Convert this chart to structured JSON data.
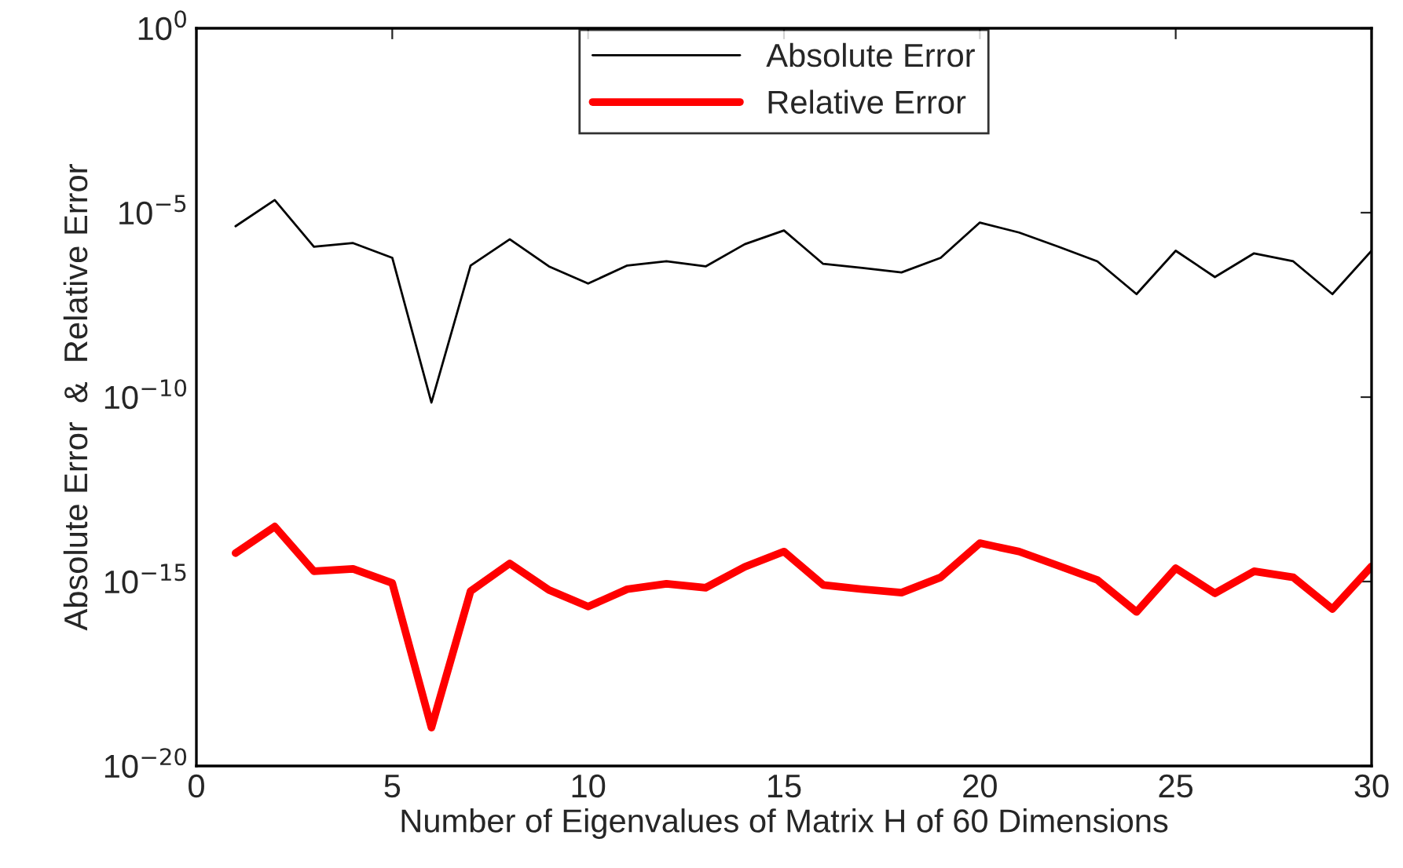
{
  "chart_data": {
    "type": "line",
    "xlabel": "Number of Eigenvalues of Matrix H of 60 Dimensions",
    "ylabel": "Absolute Error  &  Relative Error",
    "x": [
      1,
      2,
      3,
      4,
      5,
      6,
      7,
      8,
      9,
      10,
      11,
      12,
      13,
      14,
      15,
      16,
      17,
      18,
      19,
      20,
      21,
      22,
      23,
      24,
      25,
      26,
      27,
      28,
      29,
      30
    ],
    "series": [
      {
        "name": "Absolute Error",
        "color": "#000000",
        "values": [
          4.3e-06,
          2.2e-05,
          1.2e-06,
          1.5e-06,
          6e-07,
          7.1e-11,
          3.7e-07,
          1.9e-06,
          3.5e-07,
          1.2e-07,
          3.7e-07,
          4.8e-07,
          3.5e-07,
          1.4e-06,
          3.3e-06,
          4.1e-07,
          3.2e-07,
          2.4e-07,
          6e-07,
          5.4e-06,
          2.9e-06,
          1.2e-06,
          4.8e-07,
          6.2e-08,
          9.3e-07,
          1.8e-07,
          7.9e-07,
          4.8e-07,
          6.2e-08,
          9.3e-07
        ]
      },
      {
        "name": "Relative Error",
        "color": "#ff0000",
        "values": [
          5.9e-15,
          3.1e-14,
          1.9e-15,
          2.2e-15,
          9.1e-16,
          1.1e-19,
          5.5e-16,
          3.1e-15,
          5.9e-16,
          2.1e-16,
          6.2e-16,
          8.7e-16,
          6.8e-16,
          2.5e-15,
          6.5e-15,
          8.1e-16,
          6.2e-16,
          5e-16,
          1.3e-15,
          1.1e-14,
          6.5e-15,
          2.7e-15,
          1.1e-15,
          1.5e-16,
          2.3e-15,
          4.8e-16,
          1.9e-15,
          1.3e-15,
          1.8e-16,
          2.6e-15
        ]
      }
    ],
    "log": "y",
    "xlim": [
      0,
      30
    ],
    "xticks": [
      0,
      5,
      10,
      15,
      20,
      25,
      30
    ],
    "ylim": [
      1e-20,
      1
    ],
    "yticks": [
      {
        "value": 1e-20,
        "label": "10$^{−20}$"
      },
      {
        "value": 1e-15,
        "label": "10$^{−15}$"
      },
      {
        "value": 1e-10,
        "label": "10$^{−10}$"
      },
      {
        "value": 1e-05,
        "label": "10$^{−5}$"
      },
      {
        "value": 1,
        "label": "10$^{0}$"
      }
    ],
    "grid": false,
    "legend": "top",
    "marker": "none",
    "line_style": "solid"
  }
}
